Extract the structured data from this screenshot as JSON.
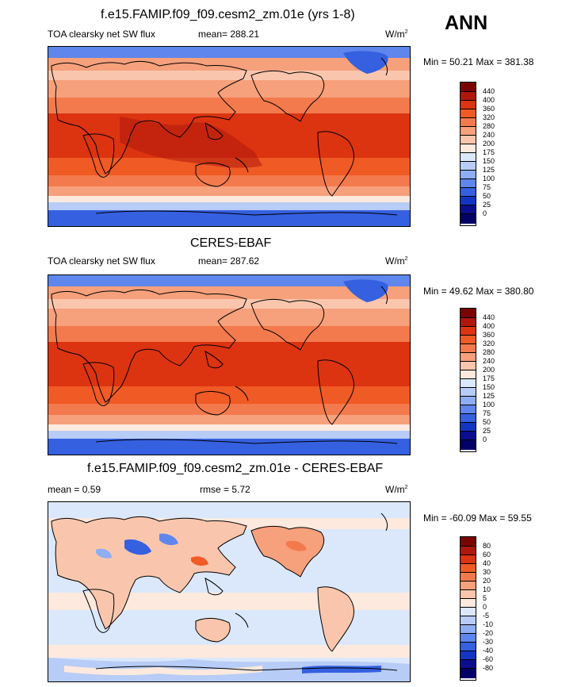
{
  "header": {
    "season": "ANN"
  },
  "panels": [
    {
      "title": "f.e15.FAMIP.f09_f09.cesm2_zm.01e (yrs 1-8)",
      "left_label": "TOA clearsky net SW flux",
      "center_label": "mean= 288.21",
      "unit": "W/m",
      "unit_sup": "2",
      "minmax": "Min =  50.21 Max = 381.38",
      "colorbar_labels": [
        "440",
        "400",
        "360",
        "320",
        "280",
        "240",
        "200",
        "175",
        "150",
        "125",
        "100",
        "75",
        "50",
        "25",
        "0"
      ]
    },
    {
      "title": "CERES-EBAF",
      "left_label": "TOA clearsky net SW flux",
      "center_label": "mean= 287.62",
      "unit": "W/m",
      "unit_sup": "2",
      "minmax": "Min =  49.62 Max = 380.80",
      "colorbar_labels": [
        "440",
        "400",
        "360",
        "320",
        "280",
        "240",
        "200",
        "175",
        "150",
        "125",
        "100",
        "75",
        "50",
        "25",
        "0"
      ]
    },
    {
      "title": "f.e15.FAMIP.f09_f09.cesm2_zm.01e - CERES-EBAF",
      "left_label": "mean =   0.59",
      "center_label": "rmse =   5.72",
      "unit": "W/m",
      "unit_sup": "2",
      "minmax": "Min = -60.09 Max =  59.55",
      "colorbar_labels": [
        "80",
        "60",
        "40",
        "30",
        "20",
        "10",
        "5",
        "0",
        "-5",
        "-10",
        "-20",
        "-30",
        "-40",
        "-60",
        "-80"
      ]
    }
  ],
  "colors": {
    "abs_scale": [
      "#7a0403",
      "#b0170c",
      "#dc3410",
      "#f05a24",
      "#f37a4d",
      "#f6a07c",
      "#f9c6ad",
      "#fde9de",
      "#dbe8fb",
      "#b7ccf6",
      "#8fadf2",
      "#5f86ec",
      "#3560e0",
      "#1236c3",
      "#0a0e8f",
      "#000066"
    ],
    "diff_scale": [
      "#7a0403",
      "#b0170c",
      "#dc3410",
      "#f05a24",
      "#f37a4d",
      "#f6a07c",
      "#f9c6ad",
      "#fde9de",
      "#dbe8fb",
      "#b7ccf6",
      "#8fadf2",
      "#5f86ec",
      "#3560e0",
      "#1236c3",
      "#0a0e8f",
      "#000066"
    ]
  }
}
